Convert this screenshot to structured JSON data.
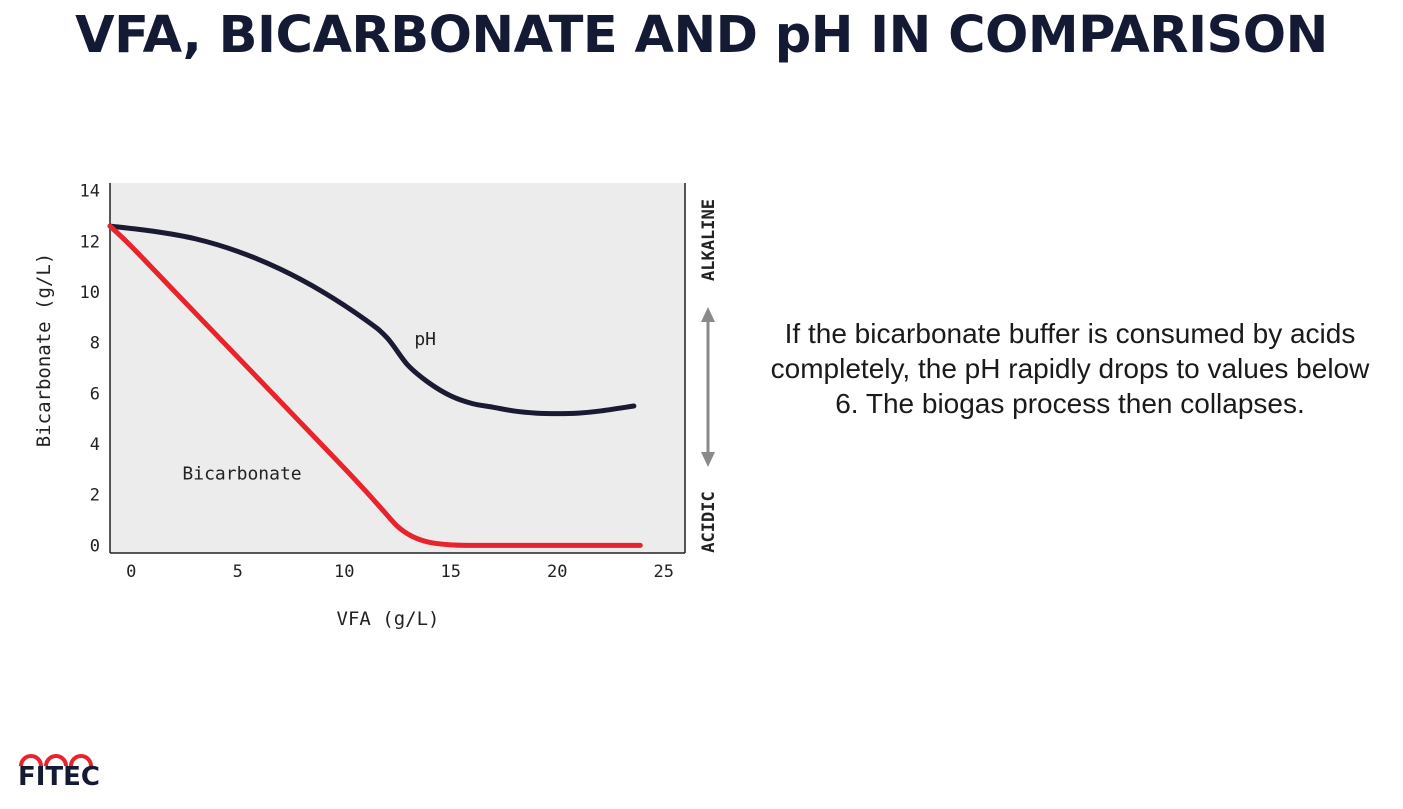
{
  "slide": {
    "title": "VFA, BICARBONATE AND pH IN COMPARISON",
    "description": "If the bicarbonate buffer is consumed by acids completely, the pH rapidly drops to values below 6. The biogas process then collapses.",
    "logo_text": "FITEC"
  },
  "colors": {
    "title": "#141a33",
    "plot_background": "#ececec",
    "bicarbonate_line": "#e8232c",
    "ph_line": "#1a1a33",
    "logo_accent": "#e8232c"
  },
  "chart_data": {
    "type": "line",
    "xlabel": "VFA (g/L)",
    "ylabel": "Bicarbonate (g/L)",
    "xlim": [
      -1,
      26
    ],
    "ylim": [
      -0.3,
      14.3
    ],
    "xticks": [
      0,
      5,
      10,
      15,
      20,
      25
    ],
    "yticks": [
      0,
      2,
      4,
      6,
      8,
      10,
      12,
      14
    ],
    "grid": false,
    "legend": "none",
    "right_axis": {
      "top_label": "ALKALINE",
      "bottom_label": "ACIDIC",
      "arrow": "double-headed vertical"
    },
    "annotations": [
      {
        "text": "pH",
        "x": 13.8,
        "y": 7.9
      },
      {
        "text": "Bicarbonate",
        "x": 5.2,
        "y": 2.6
      }
    ],
    "series": [
      {
        "name": "pH",
        "color_key": "ph_line",
        "x": [
          -1,
          1,
          3,
          5,
          7,
          9,
          11,
          12,
          13,
          14,
          15,
          16,
          17,
          18,
          19,
          20,
          21,
          22,
          23.6
        ],
        "y": [
          12.6,
          12.4,
          12.1,
          11.6,
          10.9,
          10.0,
          8.9,
          8.2,
          7.1,
          6.4,
          5.9,
          5.6,
          5.45,
          5.3,
          5.22,
          5.2,
          5.22,
          5.3,
          5.5
        ]
      },
      {
        "name": "Bicarbonate",
        "color_key": "bicarbonate_line",
        "x": [
          -1,
          0,
          2,
          4,
          6,
          8,
          10,
          11,
          11.8,
          12.5,
          13.2,
          14,
          15,
          16,
          17,
          20,
          23.9
        ],
        "y": [
          12.6,
          11.8,
          10.05,
          8.3,
          6.55,
          4.8,
          3.05,
          2.15,
          1.4,
          0.75,
          0.35,
          0.12,
          0.02,
          0,
          0,
          0,
          0
        ]
      }
    ]
  }
}
